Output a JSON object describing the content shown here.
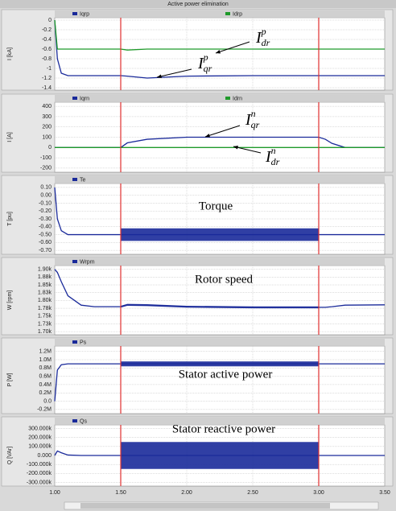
{
  "title": "Active power elimination",
  "vlines": [
    1.5,
    3.0
  ],
  "chart_data": [
    {
      "type": "line",
      "ylabel": "I [kA]",
      "xlim": [
        1.0,
        3.5
      ],
      "ylim": [
        -1.45,
        0.05
      ],
      "yticks": [
        0.0,
        -0.2,
        -0.4,
        -0.6,
        -0.8,
        -1.0,
        -1.2,
        -1.4
      ],
      "x": [
        1.0,
        1.02,
        1.05,
        1.1,
        1.2,
        1.3,
        1.5,
        1.55,
        1.7,
        2.0,
        2.5,
        2.9,
        3.0,
        3.05,
        3.1,
        3.2,
        3.5
      ],
      "series": [
        {
          "name": "Iqrp",
          "color": "#1a2a9a",
          "values": [
            0.0,
            -0.8,
            -1.1,
            -1.15,
            -1.15,
            -1.15,
            -1.15,
            -1.16,
            -1.2,
            -1.16,
            -1.15,
            -1.15,
            -1.15,
            -1.15,
            -1.15,
            -1.15,
            -1.15
          ]
        },
        {
          "name": "Idrp",
          "color": "#1f9a2a",
          "values": [
            0.0,
            -0.6,
            -0.6,
            -0.6,
            -0.6,
            -0.6,
            -0.6,
            -0.62,
            -0.6,
            -0.6,
            -0.6,
            -0.6,
            -0.6,
            -0.6,
            -0.6,
            -0.6,
            -0.6
          ]
        }
      ],
      "annotations": [
        {
          "base": "I",
          "sup": "p",
          "sub": "dr"
        },
        {
          "base": "I",
          "sup": "p",
          "sub": "qr"
        }
      ]
    },
    {
      "type": "line",
      "ylabel": "I [A]",
      "xlim": [
        1.0,
        3.5
      ],
      "ylim": [
        -240,
        440
      ],
      "yticks": [
        400,
        300,
        200,
        100,
        0,
        -100,
        -200
      ],
      "x": [
        1.0,
        1.02,
        1.05,
        1.1,
        1.2,
        1.3,
        1.5,
        1.55,
        1.7,
        2.0,
        2.5,
        2.9,
        3.0,
        3.05,
        3.1,
        3.2,
        3.5
      ],
      "series": [
        {
          "name": "Iqrn",
          "color": "#1a2a9a",
          "values": [
            0,
            0,
            0,
            0,
            0,
            0,
            0,
            45,
            80,
            100,
            100,
            100,
            100,
            80,
            40,
            0,
            0
          ]
        },
        {
          "name": "Idrn",
          "color": "#1f9a2a",
          "values": [
            0,
            0,
            0,
            0,
            0,
            0,
            0,
            0,
            0,
            0,
            0,
            0,
            0,
            0,
            0,
            0,
            0
          ]
        }
      ],
      "annotations": [
        {
          "base": "I",
          "sup": "n",
          "sub": "qr"
        },
        {
          "base": "I",
          "sup": "n",
          "sub": "dr"
        }
      ]
    },
    {
      "type": "line",
      "ylabel": "T [pu]",
      "xlim": [
        1.0,
        3.5
      ],
      "ylim": [
        -0.75,
        0.15
      ],
      "yticks": [
        {
          "value": 0.1,
          "label": "0.10"
        },
        {
          "value": 0.0,
          "label": "0.00"
        },
        {
          "value": -0.1,
          "label": "-0.10"
        },
        {
          "value": -0.2,
          "label": "-0.20"
        },
        {
          "value": -0.3,
          "label": "-0.30"
        },
        {
          "value": -0.4,
          "label": "-0.40"
        },
        {
          "value": -0.5,
          "label": "-0.50"
        },
        {
          "value": -0.6,
          "label": "-0.60"
        },
        {
          "value": -0.7,
          "label": "-0.70"
        }
      ],
      "x": [
        1.0,
        1.02,
        1.05,
        1.1,
        1.2,
        1.3,
        1.5,
        1.55,
        1.7,
        2.0,
        2.5,
        2.9,
        3.0,
        3.05,
        3.1,
        3.2,
        3.5
      ],
      "series": [
        {
          "name": "Te",
          "color": "#1a2a9a",
          "values": [
            0.1,
            -0.3,
            -0.45,
            -0.5,
            -0.5,
            -0.5,
            -0.5,
            -0.5,
            -0.5,
            -0.5,
            -0.5,
            -0.5,
            -0.5,
            -0.5,
            -0.5,
            -0.5,
            -0.5
          ],
          "band": [
            null,
            null,
            null,
            null,
            null,
            null,
            0.08,
            0.08,
            0.08,
            0.08,
            0.08,
            0.08,
            0.08,
            null,
            null,
            null,
            null
          ]
        }
      ],
      "annotations": [
        {
          "text": "Torque"
        }
      ]
    },
    {
      "type": "line",
      "ylabel": "W [rpm]",
      "xlim": [
        1.0,
        3.5
      ],
      "ylim": [
        1690,
        1912
      ],
      "yticks": [
        {
          "value": 1900,
          "label": "1.90k"
        },
        {
          "value": 1875,
          "label": "1.88k"
        },
        {
          "value": 1850,
          "label": "1.85k"
        },
        {
          "value": 1825,
          "label": "1.83k"
        },
        {
          "value": 1800,
          "label": "1.80k"
        },
        {
          "value": 1775,
          "label": "1.78k"
        },
        {
          "value": 1750,
          "label": "1.75k"
        },
        {
          "value": 1725,
          "label": "1.73k"
        },
        {
          "value": 1700,
          "label": "1.70k"
        }
      ],
      "x": [
        1.0,
        1.02,
        1.05,
        1.1,
        1.2,
        1.3,
        1.5,
        1.55,
        1.7,
        2.0,
        2.5,
        2.9,
        3.0,
        3.05,
        3.1,
        3.2,
        3.5
      ],
      "series": [
        {
          "name": "Wrpm",
          "color": "#1a2a9a",
          "values": [
            1900,
            1890,
            1860,
            1815,
            1785,
            1780,
            1780,
            1786,
            1785,
            1780,
            1778,
            1778,
            1778,
            1778,
            1780,
            1785,
            1786
          ],
          "band": [
            null,
            null,
            null,
            null,
            null,
            null,
            3,
            3,
            3,
            3,
            3,
            3,
            3,
            null,
            null,
            null,
            null
          ]
        }
      ],
      "annotations": [
        {
          "text": "Rotor speed"
        }
      ]
    },
    {
      "type": "line",
      "ylabel": "P [W]",
      "xlim": [
        1.0,
        3.5
      ],
      "ylim": [
        -300000,
        1330000
      ],
      "yticks": [
        {
          "value": 1200000,
          "label": "1.2M"
        },
        {
          "value": 1000000,
          "label": "1.0M"
        },
        {
          "value": 800000,
          "label": "0.8M"
        },
        {
          "value": 600000,
          "label": "0.6M"
        },
        {
          "value": 400000,
          "label": "0.4M"
        },
        {
          "value": 200000,
          "label": "0.2M"
        },
        {
          "value": 0,
          "label": "0.0"
        },
        {
          "value": -200000,
          "label": "-0.2M"
        }
      ],
      "x": [
        1.0,
        1.02,
        1.05,
        1.1,
        1.2,
        1.3,
        1.5,
        1.55,
        1.7,
        2.0,
        2.5,
        2.9,
        3.0,
        3.05,
        3.1,
        3.2,
        3.5
      ],
      "series": [
        {
          "name": "Ps",
          "color": "#1a2a9a",
          "values": [
            0,
            750000,
            880000,
            900000,
            900000,
            900000,
            900000,
            900000,
            900000,
            900000,
            900000,
            900000,
            900000,
            900000,
            900000,
            900000,
            900000
          ],
          "band": [
            null,
            null,
            null,
            null,
            null,
            null,
            60000,
            60000,
            60000,
            60000,
            60000,
            60000,
            60000,
            null,
            null,
            null,
            null
          ]
        }
      ],
      "annotations": [
        {
          "text": "Stator active power"
        }
      ]
    },
    {
      "type": "line",
      "ylabel": "Q [VAr]",
      "xlim": [
        1.0,
        3.5
      ],
      "ylim": [
        -340000,
        340000
      ],
      "yticks": [
        {
          "value": 300000,
          "label": "300.000k"
        },
        {
          "value": 200000,
          "label": "200.000k"
        },
        {
          "value": 100000,
          "label": "100.000k"
        },
        {
          "value": 0,
          "label": "0.000"
        },
        {
          "value": -100000,
          "label": "-100.000k"
        },
        {
          "value": -200000,
          "label": "-200.000k"
        },
        {
          "value": -300000,
          "label": "-300.000k"
        }
      ],
      "xticks": [
        {
          "value": 1.0,
          "label": "1.00"
        },
        {
          "value": 1.5,
          "label": "1.50"
        },
        {
          "value": 2.0,
          "label": "2.00"
        },
        {
          "value": 2.5,
          "label": "2.50"
        },
        {
          "value": 3.0,
          "label": "3.00"
        },
        {
          "value": 3.5,
          "label": "3.50"
        }
      ],
      "x": [
        1.0,
        1.02,
        1.05,
        1.1,
        1.2,
        1.3,
        1.5,
        1.55,
        1.7,
        2.0,
        2.5,
        2.9,
        3.0,
        3.05,
        3.1,
        3.2,
        3.5
      ],
      "series": [
        {
          "name": "Qs",
          "color": "#1a2a9a",
          "values": [
            0,
            50000,
            30000,
            5000,
            0,
            0,
            0,
            0,
            0,
            0,
            0,
            0,
            0,
            0,
            0,
            0,
            0
          ],
          "band": [
            null,
            null,
            null,
            null,
            null,
            null,
            150000,
            150000,
            150000,
            150000,
            150000,
            150000,
            150000,
            null,
            null,
            null,
            null
          ]
        }
      ],
      "annotations": [
        {
          "text": "Stator reactive power"
        }
      ]
    }
  ]
}
